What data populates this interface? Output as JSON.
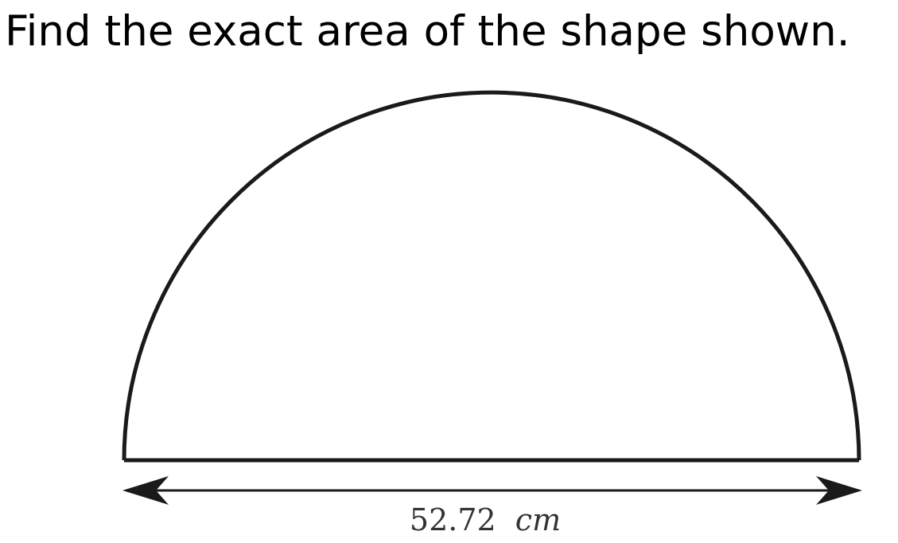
{
  "question": {
    "text": "Find the exact area of the shape shown."
  },
  "figure": {
    "shape": "semicircle",
    "diameter_label": {
      "value": "52.72",
      "unit": "cm"
    },
    "colors": {
      "stroke": "#1a1a1a",
      "label": "#333333"
    }
  }
}
